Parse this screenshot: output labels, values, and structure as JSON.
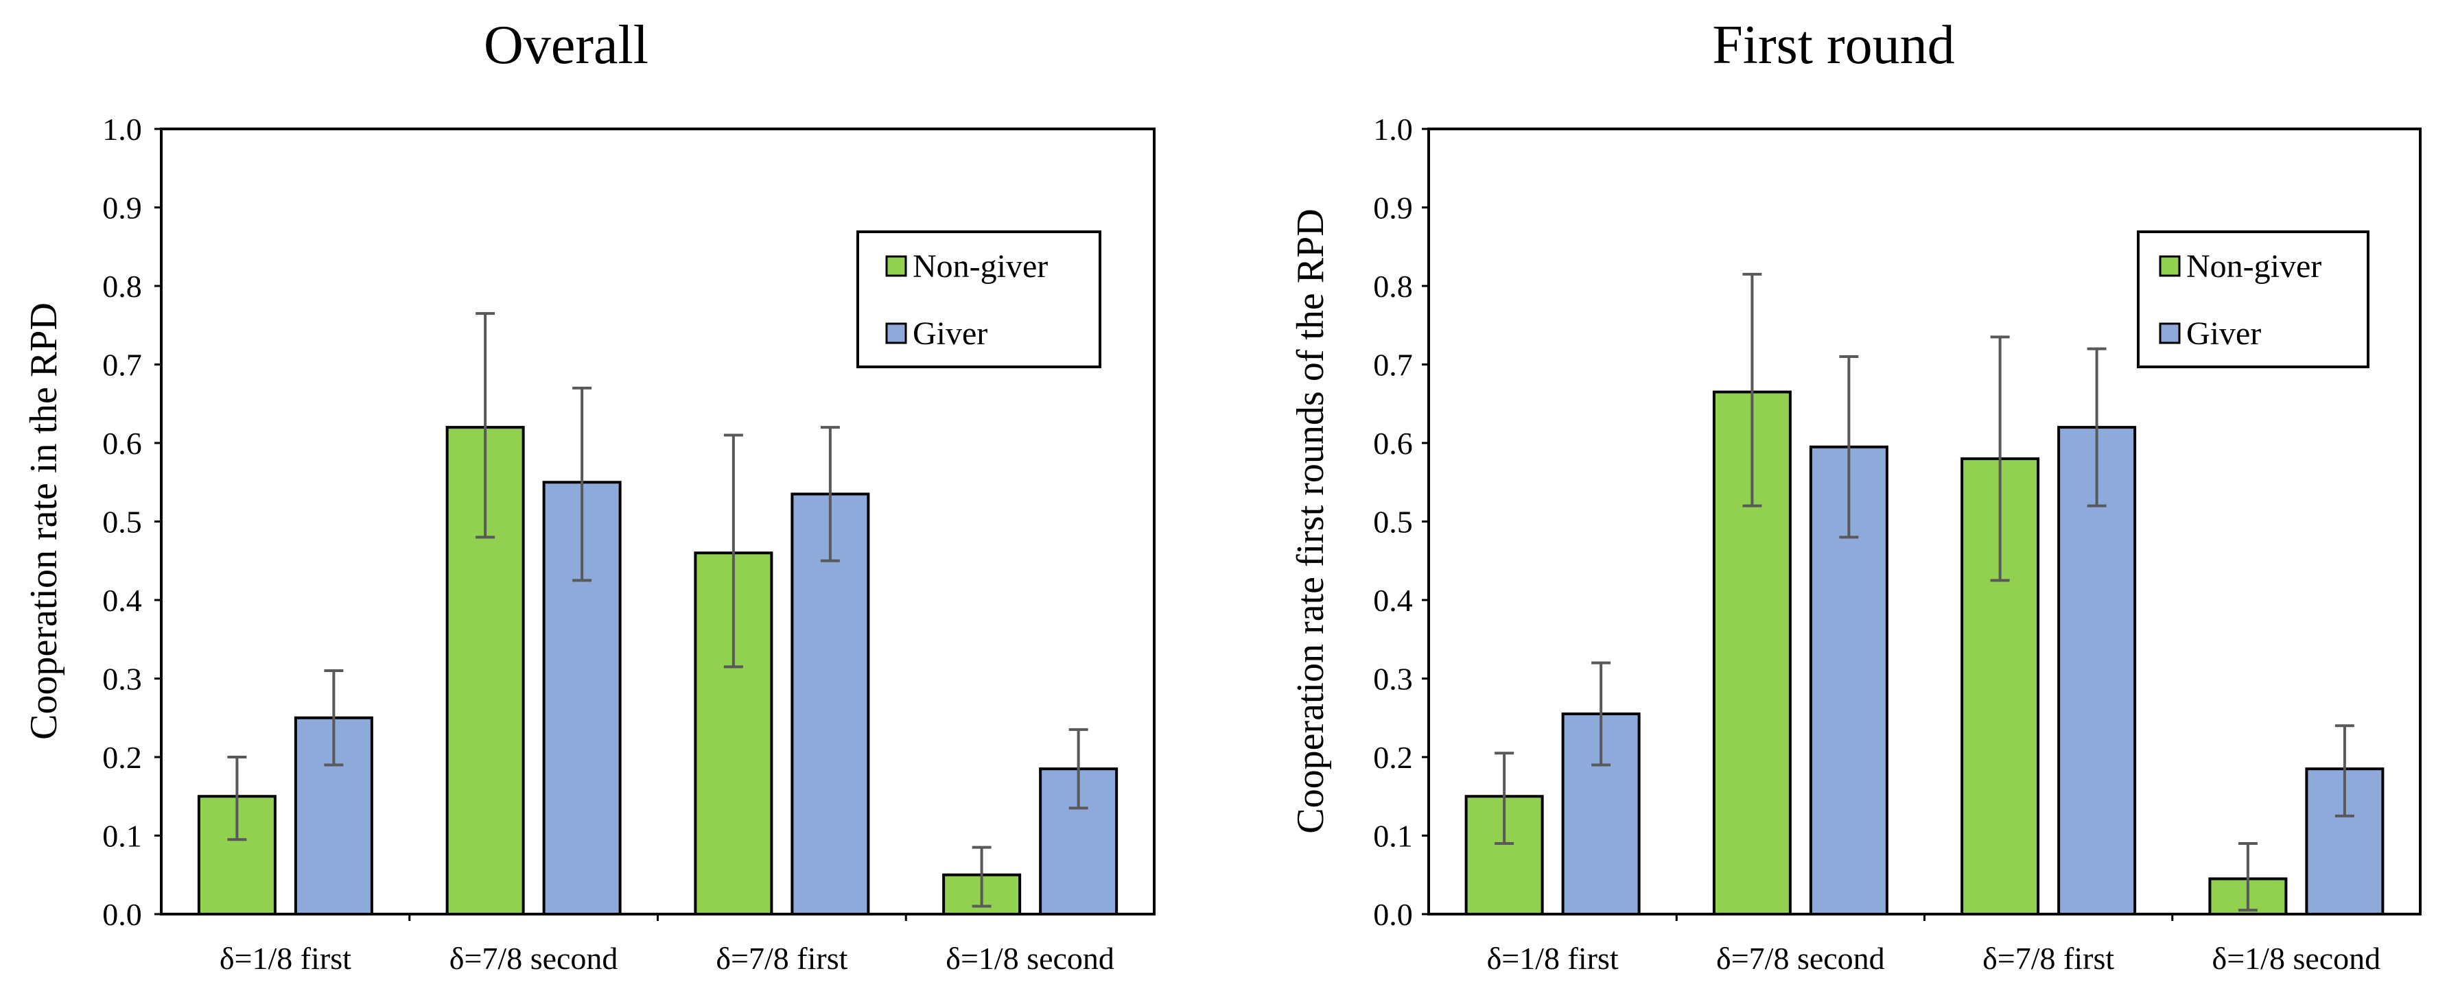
{
  "chart_data": [
    {
      "type": "bar",
      "title": "Overall",
      "xlabel": "",
      "ylabel": "Cooperation rate in the RPD",
      "ylim": [
        0,
        1.0
      ],
      "yticks": [
        "0.0",
        "0.1",
        "0.2",
        "0.3",
        "0.4",
        "0.5",
        "0.6",
        "0.7",
        "0.8",
        "0.9",
        "1.0"
      ],
      "categories": [
        "δ=1/8 first",
        "δ=7/8 second",
        "δ=7/8 first",
        "δ=1/8 second"
      ],
      "legend_position": "top-right",
      "series": [
        {
          "name": "Non-giver",
          "color": "#92d050",
          "values": [
            0.15,
            0.62,
            0.46,
            0.05
          ],
          "error_low": [
            0.095,
            0.48,
            0.315,
            0.01
          ],
          "error_high": [
            0.2,
            0.765,
            0.61,
            0.085
          ]
        },
        {
          "name": "Giver",
          "color": "#8eaadb",
          "values": [
            0.25,
            0.55,
            0.535,
            0.185
          ],
          "error_low": [
            0.19,
            0.425,
            0.45,
            0.135
          ],
          "error_high": [
            0.31,
            0.67,
            0.62,
            0.235
          ]
        }
      ]
    },
    {
      "type": "bar",
      "title": "First round",
      "xlabel": "",
      "ylabel": "Cooperation rate first rounds of the RPD",
      "ylim": [
        0,
        1.0
      ],
      "yticks": [
        "0.0",
        "0.1",
        "0.2",
        "0.3",
        "0.4",
        "0.5",
        "0.6",
        "0.7",
        "0.8",
        "0.9",
        "1.0"
      ],
      "categories": [
        "δ=1/8 first",
        "δ=7/8 second",
        "δ=7/8 first",
        "δ=1/8 second"
      ],
      "legend_position": "top-right",
      "series": [
        {
          "name": "Non-giver",
          "color": "#92d050",
          "values": [
            0.15,
            0.665,
            0.58,
            0.045
          ],
          "error_low": [
            0.09,
            0.52,
            0.425,
            0.005
          ],
          "error_high": [
            0.205,
            0.815,
            0.735,
            0.09
          ]
        },
        {
          "name": "Giver",
          "color": "#8eaadb",
          "values": [
            0.255,
            0.595,
            0.62,
            0.185
          ],
          "error_low": [
            0.19,
            0.48,
            0.52,
            0.125
          ],
          "error_high": [
            0.32,
            0.71,
            0.72,
            0.24
          ]
        }
      ]
    }
  ]
}
